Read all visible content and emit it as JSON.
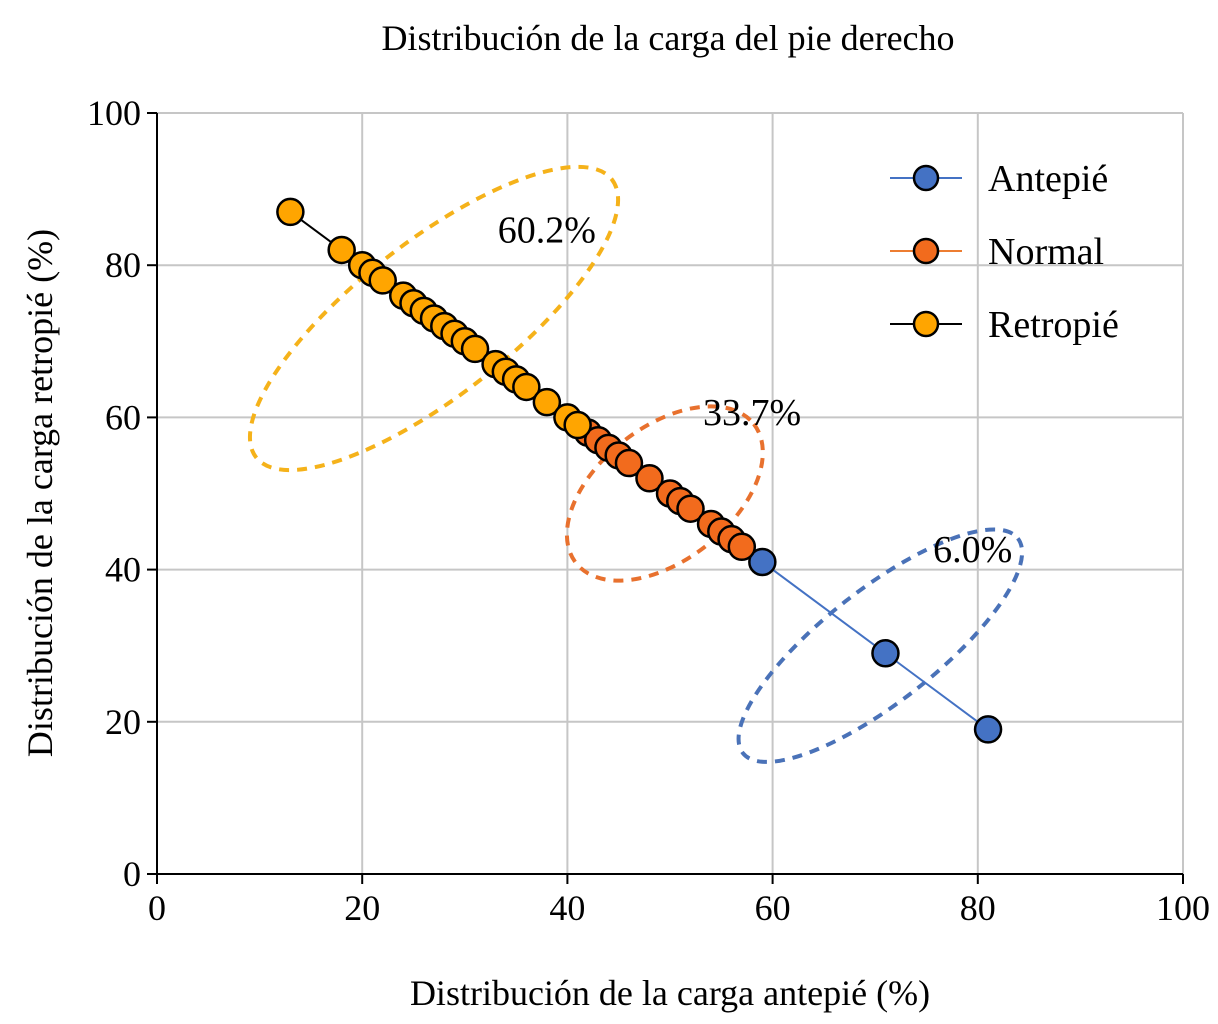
{
  "chart_data": {
    "type": "scatter",
    "title": "Distribución de la carga del pie derecho",
    "xlabel": "Distribución de la carga antepié (%)",
    "ylabel": "Distribución de la carga retropié (%)",
    "xlim": [
      0,
      100
    ],
    "ylim": [
      0,
      100
    ],
    "xticks": [
      0,
      20,
      40,
      60,
      80,
      100
    ],
    "yticks": [
      0,
      20,
      40,
      60,
      80,
      100
    ],
    "xtick_labels": [
      "0",
      "20",
      "40",
      "60",
      "80",
      "100"
    ],
    "ytick_labels": [
      "0",
      "20",
      "40",
      "60",
      "80",
      "100"
    ],
    "grid": true,
    "legend_position": "top-right",
    "series": [
      {
        "name": "Antepié",
        "color": "#4472C4",
        "line_color": "#4472C4",
        "x": [
          59,
          71,
          81
        ],
        "y": [
          41,
          29,
          19
        ]
      },
      {
        "name": "Normal",
        "color": "#F26B1D",
        "line_color": "#ED7D31",
        "x": [
          42,
          43,
          44,
          45,
          46,
          48,
          50,
          51,
          52,
          54,
          55,
          56,
          57
        ],
        "y": [
          58,
          57,
          56,
          55,
          54,
          52,
          50,
          49,
          48,
          46,
          45,
          44,
          43
        ]
      },
      {
        "name": "Retropié",
        "color": "#FFA500",
        "line_color": "#000000",
        "x": [
          13,
          18,
          20,
          21,
          22,
          24,
          25,
          26,
          27,
          28,
          29,
          30,
          31,
          33,
          34,
          35,
          36,
          38,
          40,
          41
        ],
        "y": [
          87,
          82,
          80,
          79,
          78,
          76,
          75,
          74,
          73,
          72,
          71,
          70,
          69,
          67,
          66,
          65,
          64,
          62,
          60,
          59
        ]
      }
    ],
    "annotations": [
      {
        "text": "60.2%",
        "series": "Retropié",
        "x": 38,
        "y": 83
      },
      {
        "text": "33.7%",
        "series": "Normal",
        "x": 58,
        "y": 59
      },
      {
        "text": "6.0%",
        "series": "Antepié",
        "x": 79.5,
        "y": 41
      }
    ],
    "clusters": [
      {
        "series": "Retropié",
        "color": "#F5B21A",
        "cx": 27,
        "cy": 73,
        "rx": 22,
        "ry": 7.5,
        "angle_deg": -38
      },
      {
        "series": "Normal",
        "color": "#E8712E",
        "cx": 49.5,
        "cy": 50,
        "rx": 11,
        "ry": 6.5,
        "angle_deg": -38
      },
      {
        "series": "Antepié",
        "color": "#4A72B8",
        "cx": 70.5,
        "cy": 30,
        "rx": 17,
        "ry": 5.5,
        "angle_deg": -38
      }
    ]
  }
}
